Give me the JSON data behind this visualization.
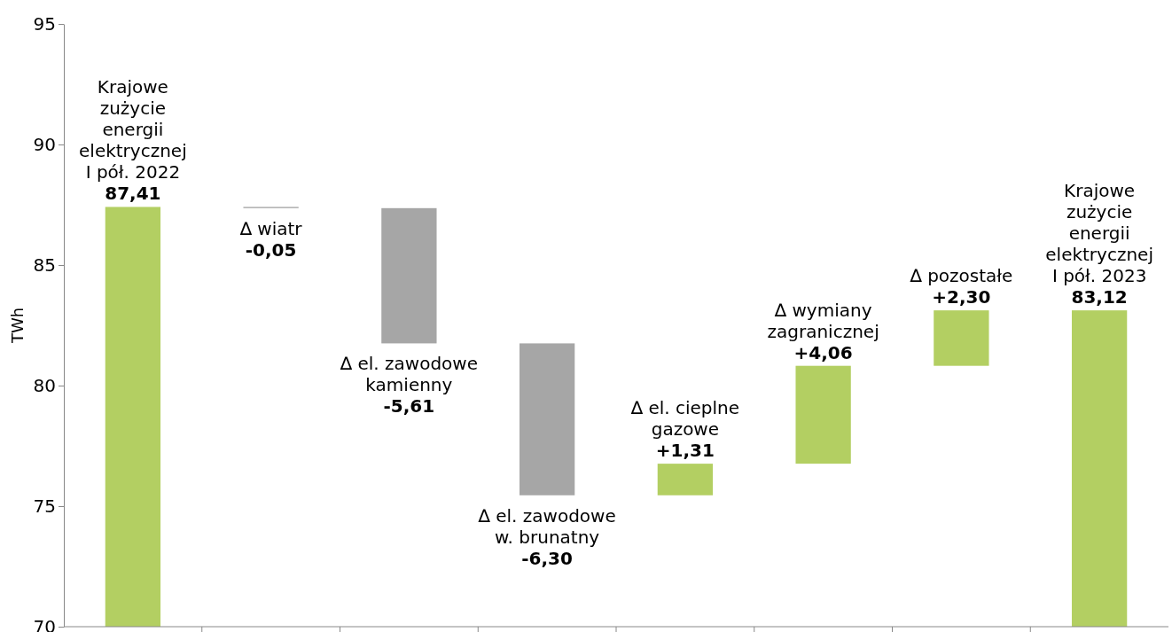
{
  "chart_data": {
    "type": "bar",
    "ylabel": "TWh",
    "categories": [
      "Krajowe\nzużycie\nenergii\nelektrycznej\nI pół. 2022",
      "∆ wiatr",
      "∆ el. zawodowe\nkamienny",
      "∆ el. zawodowe\nw. brunatny",
      "∆ el. cieplne\ngazowe",
      "∆ wymiany\nzagranicznej",
      "∆ pozostałe",
      "Krajowe\nzużycie\nenergii\nelektrycznej\nI pół. 2023"
    ],
    "values": [
      87.41,
      -0.05,
      -5.61,
      -6.3,
      1.31,
      4.06,
      2.3,
      83.12
    ],
    "base": [
      null,
      87.41,
      87.36,
      81.75,
      75.45,
      76.76,
      80.82,
      null
    ],
    "colors": [
      "#b3cf62",
      "#a6a6a6",
      "#a6a6a6",
      "#a6a6a6",
      "#b3cf62",
      "#b3cf62",
      "#b3cf62",
      "#b3cf62"
    ],
    "value_labels": [
      "87,41",
      "-0,05",
      "-5,61",
      "-6,30",
      "+1,31",
      "+4,06",
      "+2,30",
      "83,12"
    ],
    "ylim": [
      70,
      95
    ],
    "yticks": [
      70,
      75,
      80,
      85,
      90,
      95
    ]
  }
}
